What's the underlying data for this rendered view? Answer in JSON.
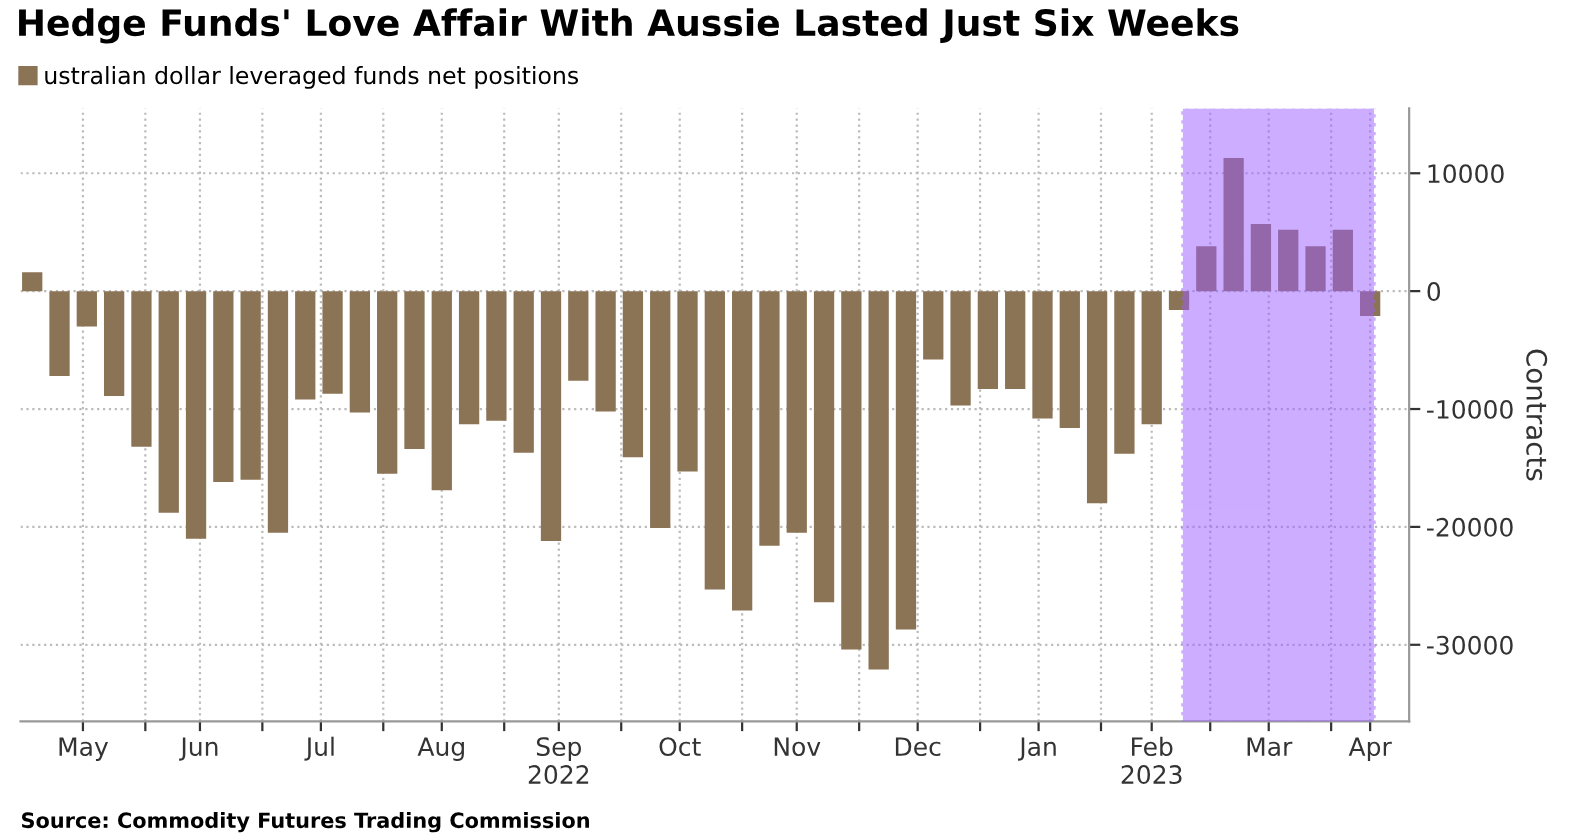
{
  "chart_data": {
    "type": "bar",
    "title": "Hedge Funds' Love Affair With Aussie Lasted Just Six Weeks",
    "ylabel": "Contracts",
    "x": [
      "2022-05-03",
      "2022-05-10",
      "2022-05-17",
      "2022-05-24",
      "2022-05-31",
      "2022-06-07",
      "2022-06-14",
      "2022-06-21",
      "2022-06-28",
      "2022-07-05",
      "2022-07-12",
      "2022-07-19",
      "2022-07-26",
      "2022-08-02",
      "2022-08-09",
      "2022-08-16",
      "2022-08-23",
      "2022-08-30",
      "2022-09-06",
      "2022-09-13",
      "2022-09-20",
      "2022-09-27",
      "2022-10-04",
      "2022-10-11",
      "2022-10-18",
      "2022-10-25",
      "2022-11-01",
      "2022-11-08",
      "2022-11-15",
      "2022-11-22",
      "2022-11-29",
      "2022-12-06",
      "2022-12-13",
      "2022-12-20",
      "2022-12-27",
      "2023-01-03",
      "2023-01-10",
      "2023-01-17",
      "2023-01-24",
      "2023-01-31",
      "2023-02-07",
      "2023-02-14",
      "2023-02-21",
      "2023-02-28",
      "2023-03-07",
      "2023-03-14",
      "2023-03-21",
      "2023-03-28",
      "2023-04-04",
      "2023-04-11"
    ],
    "series": [
      {
        "name": "ustralian dollar leveraged funds net positions",
        "color": "#8b7355",
        "values": [
          1600,
          -7200,
          -3000,
          -8900,
          -13200,
          -18800,
          -21000,
          -16200,
          -16000,
          -20500,
          -9200,
          -8700,
          -10300,
          -15500,
          -13400,
          -16900,
          -11300,
          -11000,
          -13700,
          -21200,
          -7600,
          -10200,
          -14100,
          -20100,
          -15300,
          -25300,
          -27100,
          -21600,
          -20500,
          -26400,
          -30400,
          -32100,
          -28700,
          -5800,
          -9700,
          -8300,
          -8300,
          -10800,
          -11600,
          -18000,
          -13800,
          -11300,
          -1600,
          3800,
          11300,
          5700,
          5200,
          3800,
          5200,
          -2100
        ]
      }
    ],
    "xlim": [
      "2022-04-30",
      "2023-04-21"
    ],
    "xticks": [
      {
        "value": "2022-05-16",
        "label": "May"
      },
      {
        "value": "2022-06-01",
        "label": null
      },
      {
        "value": "2022-06-15",
        "label": "Jun"
      },
      {
        "value": "2022-07-01",
        "label": null
      },
      {
        "value": "2022-07-16",
        "label": "Jul"
      },
      {
        "value": "2022-08-01",
        "label": null
      },
      {
        "value": "2022-08-16",
        "label": "Aug"
      },
      {
        "value": "2022-09-01",
        "label": null
      },
      {
        "value": "2022-09-15",
        "label": "Sep\n2022"
      },
      {
        "value": "2022-10-01",
        "label": null
      },
      {
        "value": "2022-10-16",
        "label": "Oct"
      },
      {
        "value": "2022-11-01",
        "label": null
      },
      {
        "value": "2022-11-15",
        "label": "Nov"
      },
      {
        "value": "2022-12-01",
        "label": null
      },
      {
        "value": "2022-12-16",
        "label": "Dec"
      },
      {
        "value": "2023-01-01",
        "label": null
      },
      {
        "value": "2023-01-16",
        "label": "Jan"
      },
      {
        "value": "2023-02-01",
        "label": null
      },
      {
        "value": "2023-02-14",
        "label": "Feb\n2023"
      },
      {
        "value": "2023-03-01",
        "label": null
      },
      {
        "value": "2023-03-16",
        "label": "Mar"
      },
      {
        "value": "2023-04-01",
        "label": null
      },
      {
        "value": "2023-04-11",
        "label": "Apr"
      }
    ],
    "ylim": [
      -36500,
      15500
    ],
    "yticks": [
      -30000,
      -20000,
      -10000,
      0,
      10000
    ],
    "bands": [
      {
        "axis": "x",
        "from": "2023-02-22",
        "to": "2023-04-12",
        "color": "#9b5cff"
      }
    ],
    "grid": true,
    "legend": "top left",
    "annotations": [
      "Source: Commodity Futures Trading Commission"
    ]
  }
}
